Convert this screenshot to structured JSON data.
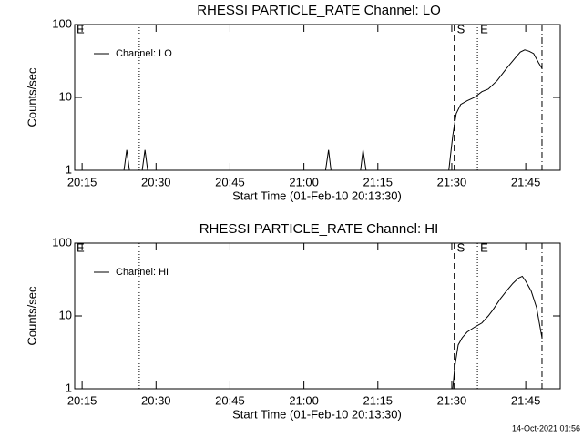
{
  "chart_data": [
    {
      "type": "line",
      "title": "RHESSI PARTICLE_RATE Channel: LO",
      "x_label": "Start Time (01-Feb-10 20:13:30)",
      "y_label": "Counts/sec",
      "log_y": true,
      "legend": "upper left",
      "corner_label": "E",
      "xlim": [
        1213.5,
        1312
      ],
      "ylim": [
        1,
        100
      ],
      "yticks": [
        1,
        10,
        100
      ],
      "xticks": [
        {
          "value": 1215,
          "label": "20:15"
        },
        {
          "value": 1230,
          "label": "20:30"
        },
        {
          "value": 1245,
          "label": "20:45"
        },
        {
          "value": 1260,
          "label": "21:00"
        },
        {
          "value": 1275,
          "label": "21:15"
        },
        {
          "value": 1290,
          "label": "21:30"
        },
        {
          "value": 1305,
          "label": "21:45"
        }
      ],
      "vlines": [
        {
          "x": 1226.6,
          "style": "dotted"
        },
        {
          "x": 1290.5,
          "style": "dashed",
          "label": "S"
        },
        {
          "x": 1295.2,
          "style": "dotted",
          "label": "E"
        },
        {
          "x": 1308.3,
          "style": "dashdot"
        }
      ],
      "series": [
        {
          "name": "Channel: LO",
          "color": "#000000",
          "x": [
            1213.5,
            1223.5,
            1224.06,
            1224.6,
            1227.2,
            1227.76,
            1228.3,
            1264.4,
            1265.0,
            1265.5,
            1271.5,
            1272.0,
            1272.6,
            1289.4,
            1290.2,
            1290.9,
            1291.8,
            1293.1,
            1294.6,
            1296.1,
            1297.4,
            1299.2,
            1301.1,
            1302.9,
            1303.9,
            1304.8,
            1305.7,
            1306.6,
            1307.6,
            1308.3
          ],
          "values": [
            1,
            1,
            1.9,
            1,
            1,
            1.9,
            1,
            1,
            1.9,
            1,
            1,
            1.9,
            1,
            1,
            3,
            6,
            8,
            9,
            10,
            12,
            13,
            17,
            25,
            35,
            42,
            45,
            43,
            40,
            30,
            25
          ]
        }
      ]
    },
    {
      "type": "line",
      "title": "RHESSI PARTICLE_RATE Channel: HI",
      "x_label": "Start Time (01-Feb-10 20:13:30)",
      "y_label": "Counts/sec",
      "log_y": true,
      "legend": "upper left",
      "corner_label": "E",
      "xlim": [
        1213.5,
        1312
      ],
      "ylim": [
        1,
        100
      ],
      "yticks": [
        1,
        10,
        100
      ],
      "xticks": [
        {
          "value": 1215,
          "label": "20:15"
        },
        {
          "value": 1230,
          "label": "20:30"
        },
        {
          "value": 1245,
          "label": "20:45"
        },
        {
          "value": 1260,
          "label": "21:00"
        },
        {
          "value": 1275,
          "label": "21:15"
        },
        {
          "value": 1290,
          "label": "21:30"
        },
        {
          "value": 1305,
          "label": "21:45"
        }
      ],
      "vlines": [
        {
          "x": 1226.6,
          "style": "dotted"
        },
        {
          "x": 1290.5,
          "style": "dashed",
          "label": "S"
        },
        {
          "x": 1295.2,
          "style": "dotted",
          "label": "E"
        },
        {
          "x": 1308.3,
          "style": "dashdot"
        }
      ],
      "series": [
        {
          "name": "Channel: HI",
          "color": "#000000",
          "x": [
            1213.5,
            1290.2,
            1290.6,
            1291.3,
            1292.1,
            1293.1,
            1294.6,
            1296.1,
            1297.4,
            1298.3,
            1299.8,
            1301.1,
            1302.4,
            1303.5,
            1304.3,
            1305.0,
            1306.1,
            1307.2,
            1308.3
          ],
          "values": [
            1,
            1,
            2,
            4,
            5,
            6,
            7,
            8,
            10,
            12,
            17,
            22,
            28,
            33,
            35,
            30,
            22,
            13,
            5
          ]
        }
      ]
    }
  ],
  "footer": "14-Oct-2021 01:56"
}
